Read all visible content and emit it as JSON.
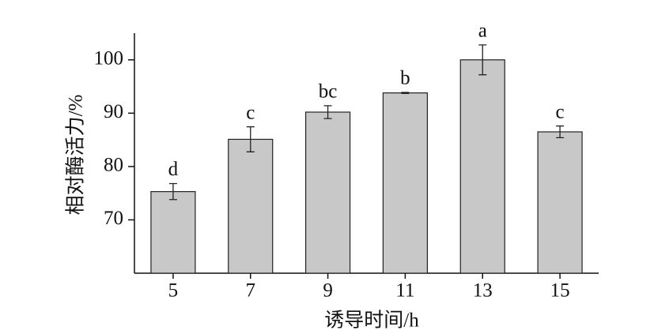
{
  "chart_data": {
    "type": "bar",
    "x_label": "诱导时间/h",
    "y_label": "相对酶活力/%",
    "categories": [
      "5",
      "7",
      "9",
      "11",
      "13",
      "15"
    ],
    "values": [
      75.3,
      85.1,
      90.2,
      93.8,
      100,
      86.5
    ],
    "errors": [
      1.5,
      2.35,
      1.2,
      0.1,
      2.8,
      1.1
    ],
    "annotations": [
      "d",
      "c",
      "bc",
      "b",
      "a",
      "c"
    ],
    "color": "#c8c8c8",
    "ylim": [
      60,
      105
    ],
    "yticks": [
      70,
      80,
      90,
      100
    ]
  }
}
